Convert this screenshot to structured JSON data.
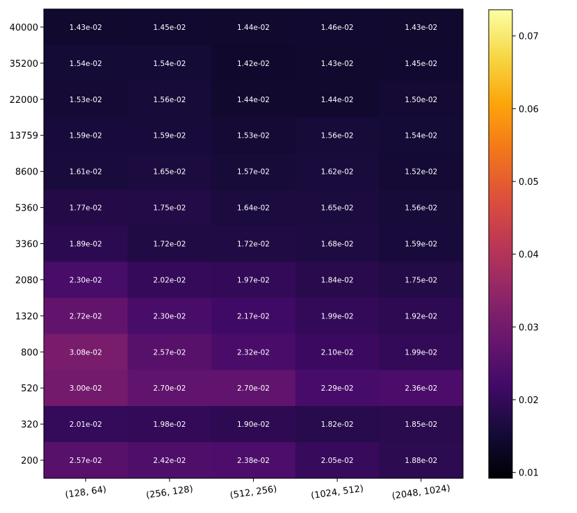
{
  "chart_data": {
    "type": "heatmap",
    "title": "",
    "xlabel": "",
    "ylabel": "",
    "x_categories": [
      "(128, 64)",
      "(256, 128)",
      "(512, 256)",
      "(1024, 512)",
      "(2048, 1024)"
    ],
    "y_categories": [
      "40000",
      "35200",
      "22000",
      "13759",
      "8600",
      "5360",
      "3360",
      "2080",
      "1320",
      "800",
      "520",
      "320",
      "200"
    ],
    "values": [
      [
        0.0143,
        0.0145,
        0.0144,
        0.0146,
        0.0143
      ],
      [
        0.0154,
        0.0154,
        0.0142,
        0.0143,
        0.0145
      ],
      [
        0.0153,
        0.0156,
        0.0144,
        0.0144,
        0.015
      ],
      [
        0.0159,
        0.0159,
        0.0153,
        0.0156,
        0.0154
      ],
      [
        0.0161,
        0.0165,
        0.0157,
        0.0162,
        0.0152
      ],
      [
        0.0177,
        0.0175,
        0.0164,
        0.0165,
        0.0156
      ],
      [
        0.0189,
        0.0172,
        0.0172,
        0.0168,
        0.0159
      ],
      [
        0.023,
        0.0202,
        0.0197,
        0.0184,
        0.0175
      ],
      [
        0.0272,
        0.023,
        0.0217,
        0.0199,
        0.0192
      ],
      [
        0.0308,
        0.0257,
        0.0232,
        0.021,
        0.0199
      ],
      [
        0.03,
        0.027,
        0.027,
        0.0229,
        0.0236
      ],
      [
        0.0201,
        0.0198,
        0.019,
        0.0182,
        0.0185
      ],
      [
        0.0257,
        0.0242,
        0.0238,
        0.0205,
        0.0188
      ]
    ],
    "cell_labels": [
      [
        "1.43e-02",
        "1.45e-02",
        "1.44e-02",
        "1.46e-02",
        "1.43e-02"
      ],
      [
        "1.54e-02",
        "1.54e-02",
        "1.42e-02",
        "1.43e-02",
        "1.45e-02"
      ],
      [
        "1.53e-02",
        "1.56e-02",
        "1.44e-02",
        "1.44e-02",
        "1.50e-02"
      ],
      [
        "1.59e-02",
        "1.59e-02",
        "1.53e-02",
        "1.56e-02",
        "1.54e-02"
      ],
      [
        "1.61e-02",
        "1.65e-02",
        "1.57e-02",
        "1.62e-02",
        "1.52e-02"
      ],
      [
        "1.77e-02",
        "1.75e-02",
        "1.64e-02",
        "1.65e-02",
        "1.56e-02"
      ],
      [
        "1.89e-02",
        "1.72e-02",
        "1.72e-02",
        "1.68e-02",
        "1.59e-02"
      ],
      [
        "2.30e-02",
        "2.02e-02",
        "1.97e-02",
        "1.84e-02",
        "1.75e-02"
      ],
      [
        "2.72e-02",
        "2.30e-02",
        "2.17e-02",
        "1.99e-02",
        "1.92e-02"
      ],
      [
        "3.08e-02",
        "2.57e-02",
        "2.32e-02",
        "2.10e-02",
        "1.99e-02"
      ],
      [
        "3.00e-02",
        "2.70e-02",
        "2.70e-02",
        "2.29e-02",
        "2.36e-02"
      ],
      [
        "2.01e-02",
        "1.98e-02",
        "1.90e-02",
        "1.82e-02",
        "1.85e-02"
      ],
      [
        "2.57e-02",
        "2.42e-02",
        "2.38e-02",
        "2.05e-02",
        "1.88e-02"
      ]
    ],
    "colormap": "inferno",
    "color_range": [
      0.0092,
      0.0736
    ],
    "colorbar_ticks": [
      0.01,
      0.02,
      0.03,
      0.04,
      0.05,
      0.06,
      0.07
    ],
    "colorbar_tick_labels": [
      "0.01",
      "0.02",
      "0.03",
      "0.04",
      "0.05",
      "0.06",
      "0.07"
    ],
    "colorbar_placement": "right",
    "grid": false
  }
}
